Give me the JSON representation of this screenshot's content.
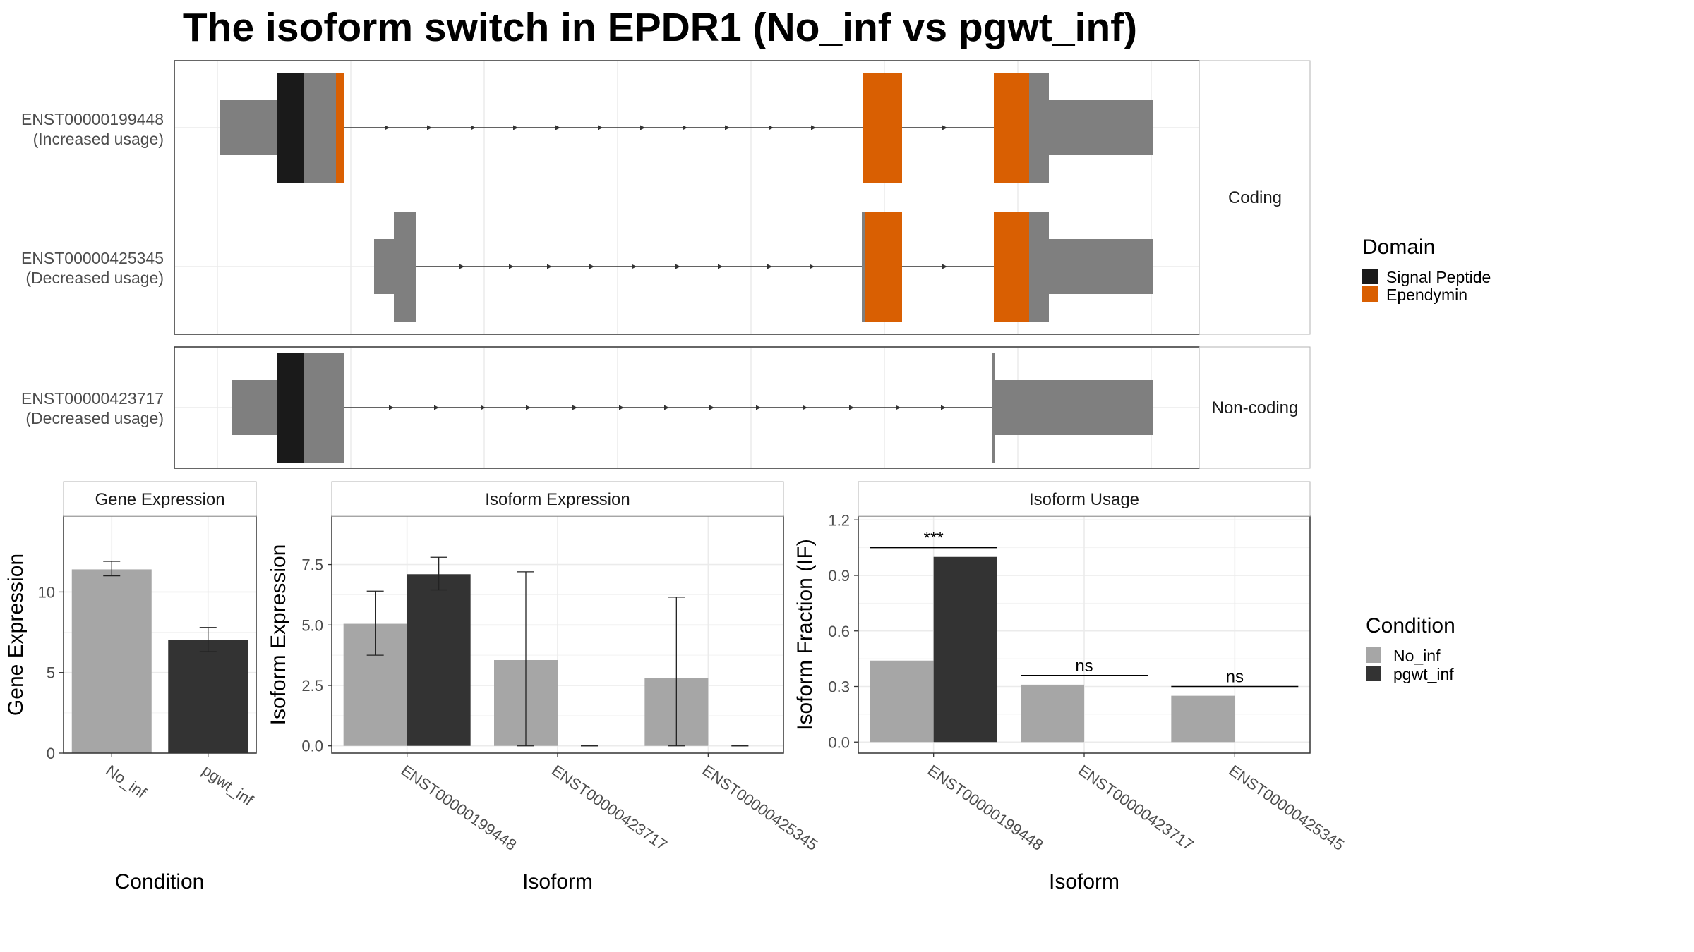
{
  "title": "The isoform switch in EPDR1 (No_inf vs pgwt_inf)",
  "colors": {
    "signal_peptide": "#1a1a1a",
    "ependymin": "#d95f02",
    "exon": "#7f7f7f",
    "no_inf": "#a6a6a6",
    "pgwt_inf": "#333333",
    "grid": "#ebebeb",
    "panel_border": "#333333"
  },
  "structure": {
    "facets": [
      "Coding",
      "Non-coding"
    ],
    "isoforms": [
      {
        "id": "ENST00000199448",
        "usage": "(Increased usage)",
        "facet": "Coding"
      },
      {
        "id": "ENST00000425345",
        "usage": "(Decreased usage)",
        "facet": "Coding"
      },
      {
        "id": "ENST00000423717",
        "usage": "(Decreased usage)",
        "facet": "Non-coding"
      }
    ],
    "legend": {
      "title": "Domain",
      "items": [
        "Signal Peptide",
        "Ependymin"
      ]
    }
  },
  "condition_legend": {
    "title": "Condition",
    "items": [
      "No_inf",
      "pgwt_inf"
    ]
  },
  "chart_data": [
    {
      "type": "bar",
      "title": "Gene Expression",
      "xlabel": "Condition",
      "ylabel": "Gene Expression",
      "categories": [
        "No_inf",
        "pgwt_inf"
      ],
      "values": [
        11.4,
        7.0
      ],
      "error": [
        [
          11.0,
          11.9
        ],
        [
          6.3,
          7.8
        ]
      ],
      "yticks": [
        0,
        5,
        10
      ],
      "ylim": [
        0,
        14.7
      ],
      "grid": true
    },
    {
      "type": "bar",
      "title": "Isoform Expression",
      "xlabel": "Isoform",
      "ylabel": "Isoform Expression",
      "categories": [
        "ENST00000199448",
        "ENST00000423717",
        "ENST00000425345"
      ],
      "series": [
        {
          "name": "No_inf",
          "values": [
            5.05,
            3.55,
            2.8
          ],
          "error": [
            [
              3.75,
              6.4
            ],
            [
              0.0,
              7.2
            ],
            [
              0.0,
              6.15
            ]
          ]
        },
        {
          "name": "pgwt_inf",
          "values": [
            7.1,
            0.0,
            0.0
          ],
          "error": [
            [
              6.45,
              7.8
            ],
            [
              0.0,
              0.0
            ],
            [
              0.0,
              0.0
            ]
          ]
        }
      ],
      "yticks": [
        0.0,
        2.5,
        5.0,
        7.5
      ],
      "ytick_labels": [
        "0.0",
        "2.5",
        "5.0",
        "7.5"
      ],
      "ylim": [
        -0.3,
        9.5
      ],
      "grid": true
    },
    {
      "type": "bar",
      "title": "Isoform Usage",
      "xlabel": "Isoform",
      "ylabel": "Isoform Fraction (IF)",
      "categories": [
        "ENST00000199448",
        "ENST00000423717",
        "ENST00000425345"
      ],
      "series": [
        {
          "name": "No_inf",
          "values": [
            0.44,
            0.31,
            0.25
          ]
        },
        {
          "name": "pgwt_inf",
          "values": [
            1.0,
            0.0,
            0.0
          ]
        }
      ],
      "annotations": [
        {
          "category": "ENST00000199448",
          "text": "***",
          "y": 1.05
        },
        {
          "category": "ENST00000423717",
          "text": "ns",
          "y": 0.36
        },
        {
          "category": "ENST00000425345",
          "text": "ns",
          "y": 0.3
        }
      ],
      "yticks": [
        0.0,
        0.3,
        0.6,
        0.9,
        1.2
      ],
      "ytick_labels": [
        "0.0",
        "0.3",
        "0.6",
        "0.9",
        "1.2"
      ],
      "ylim": [
        -0.06,
        1.22
      ],
      "grid": true
    }
  ]
}
